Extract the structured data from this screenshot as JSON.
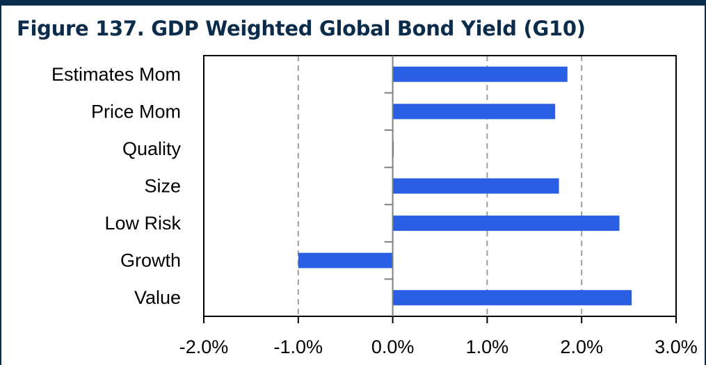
{
  "page": {
    "title": "Figure 137. GDP Weighted Global Bond Yield (G10)"
  },
  "colors": {
    "bar": "#2a5fe4",
    "frame": "#0b2c4b",
    "grid": "#9e9e9e"
  },
  "chart_data": {
    "type": "bar",
    "orientation": "horizontal",
    "title": "Figure 137. GDP Weighted Global Bond Yield (G10)",
    "categories": [
      "Estimates Mom",
      "Price Mom",
      "Quality",
      "Size",
      "Low Risk",
      "Growth",
      "Value"
    ],
    "values": [
      1.85,
      1.72,
      0.01,
      1.76,
      2.4,
      -1.0,
      2.53
    ],
    "value_unit": "%",
    "xlim": [
      -2.0,
      3.0
    ],
    "xticks": [
      -2.0,
      -1.0,
      0.0,
      1.0,
      2.0,
      3.0
    ],
    "xtick_labels": [
      "-2.0%",
      "-1.0%",
      "0.0%",
      "1.0%",
      "2.0%",
      "3.0%"
    ],
    "xlabel": "",
    "ylabel": "",
    "grid": "vertical dashed",
    "legend": "none"
  }
}
